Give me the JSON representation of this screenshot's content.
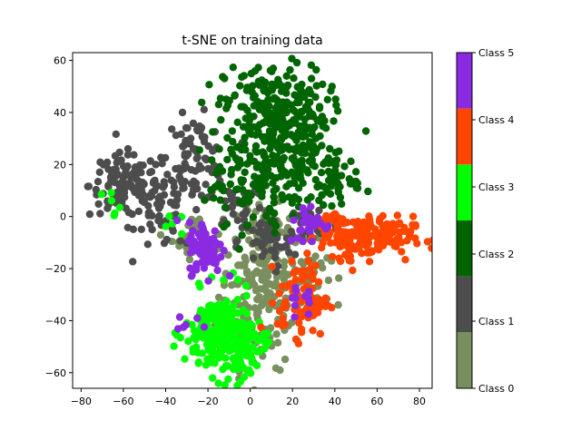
{
  "chart_data": {
    "type": "scatter",
    "title": "t-SNE on training data",
    "xlabel": "",
    "ylabel": "",
    "xlim": [
      -84,
      86
    ],
    "ylim": [
      -66,
      63
    ],
    "x_ticks": [
      -80,
      -60,
      -40,
      -20,
      0,
      20,
      40,
      60,
      80
    ],
    "y_ticks": [
      -60,
      -40,
      -20,
      0,
      20,
      40,
      60
    ],
    "x_tick_labels": [
      "−80",
      "−60",
      "−40",
      "−20",
      "0",
      "20",
      "40",
      "60",
      "80"
    ],
    "y_tick_labels": [
      "−60",
      "−40",
      "−20",
      "0",
      "20",
      "40",
      "60"
    ],
    "grid": false,
    "colorbar": {
      "labels": [
        "Class 0",
        "Class 1",
        "Class 2",
        "Class 3",
        "Class 4",
        "Class 5"
      ],
      "colors": [
        "#7a8f5e",
        "#4d4d4d",
        "#006400",
        "#00ff00",
        "#ff4500",
        "#8a2be2"
      ]
    },
    "series": [
      {
        "name": "Class 0",
        "color": "#7a8f5e",
        "clusters": [
          {
            "cx": 5,
            "cy": -30,
            "sx": 10,
            "sy": 14,
            "n": 190
          },
          {
            "cx": 28,
            "cy": -22,
            "sx": 5,
            "sy": 6,
            "n": 40
          },
          {
            "cx": -25,
            "cy": -8,
            "sx": 6,
            "sy": 4,
            "n": 30
          },
          {
            "cx": 8,
            "cy": -5,
            "sx": 6,
            "sy": 5,
            "n": 40
          }
        ]
      },
      {
        "name": "Class 1",
        "color": "#4d4d4d",
        "clusters": [
          {
            "cx": -60,
            "cy": 12,
            "sx": 8,
            "sy": 6,
            "n": 110
          },
          {
            "cx": -42,
            "cy": 3,
            "sx": 6,
            "sy": 8,
            "n": 60
          },
          {
            "cx": -26,
            "cy": 22,
            "sx": 7,
            "sy": 8,
            "n": 90
          },
          {
            "cx": 8,
            "cy": -10,
            "sx": 7,
            "sy": 5,
            "n": 50
          },
          {
            "cx": 30,
            "cy": -3,
            "sx": 6,
            "sy": 4,
            "n": 30
          },
          {
            "cx": -5,
            "cy": 5,
            "sx": 6,
            "sy": 5,
            "n": 30
          }
        ]
      },
      {
        "name": "Class 2",
        "color": "#006400",
        "clusters": [
          {
            "cx": 12,
            "cy": 42,
            "sx": 12,
            "sy": 8,
            "n": 210
          },
          {
            "cx": 18,
            "cy": 22,
            "sx": 14,
            "sy": 9,
            "n": 190
          },
          {
            "cx": 40,
            "cy": 15,
            "sx": 6,
            "sy": 5,
            "n": 40
          },
          {
            "cx": 5,
            "cy": 8,
            "sx": 8,
            "sy": 7,
            "n": 40
          },
          {
            "cx": -12,
            "cy": 15,
            "sx": 5,
            "sy": 8,
            "n": 30
          }
        ]
      },
      {
        "name": "Class 3",
        "color": "#00ff00",
        "clusters": [
          {
            "cx": -15,
            "cy": -45,
            "sx": 8,
            "sy": 8,
            "n": 180
          },
          {
            "cx": -5,
            "cy": -50,
            "sx": 6,
            "sy": 6,
            "n": 70
          },
          {
            "cx": -65,
            "cy": 5,
            "sx": 3,
            "sy": 3,
            "n": 6
          },
          {
            "cx": -38,
            "cy": -3,
            "sx": 3,
            "sy": 2,
            "n": 5
          }
        ]
      },
      {
        "name": "Class 4",
        "color": "#ff4500",
        "clusters": [
          {
            "cx": 55,
            "cy": -8,
            "sx": 11,
            "sy": 4,
            "n": 150
          },
          {
            "cx": 25,
            "cy": -32,
            "sx": 6,
            "sy": 7,
            "n": 90
          },
          {
            "cx": 40,
            "cy": -3,
            "sx": 4,
            "sy": 3,
            "n": 30
          },
          {
            "cx": 45,
            "cy": -15,
            "sx": 3,
            "sy": 3,
            "n": 10
          }
        ]
      },
      {
        "name": "Class 5",
        "color": "#8a2be2",
        "clusters": [
          {
            "cx": -21,
            "cy": -12,
            "sx": 4,
            "sy": 5,
            "n": 90
          },
          {
            "cx": 28,
            "cy": -3,
            "sx": 5,
            "sy": 4,
            "n": 30
          },
          {
            "cx": 25,
            "cy": -30,
            "sx": 4,
            "sy": 4,
            "n": 12
          },
          {
            "cx": -30,
            "cy": -40,
            "sx": 3,
            "sy": 3,
            "n": 6
          }
        ]
      }
    ]
  }
}
